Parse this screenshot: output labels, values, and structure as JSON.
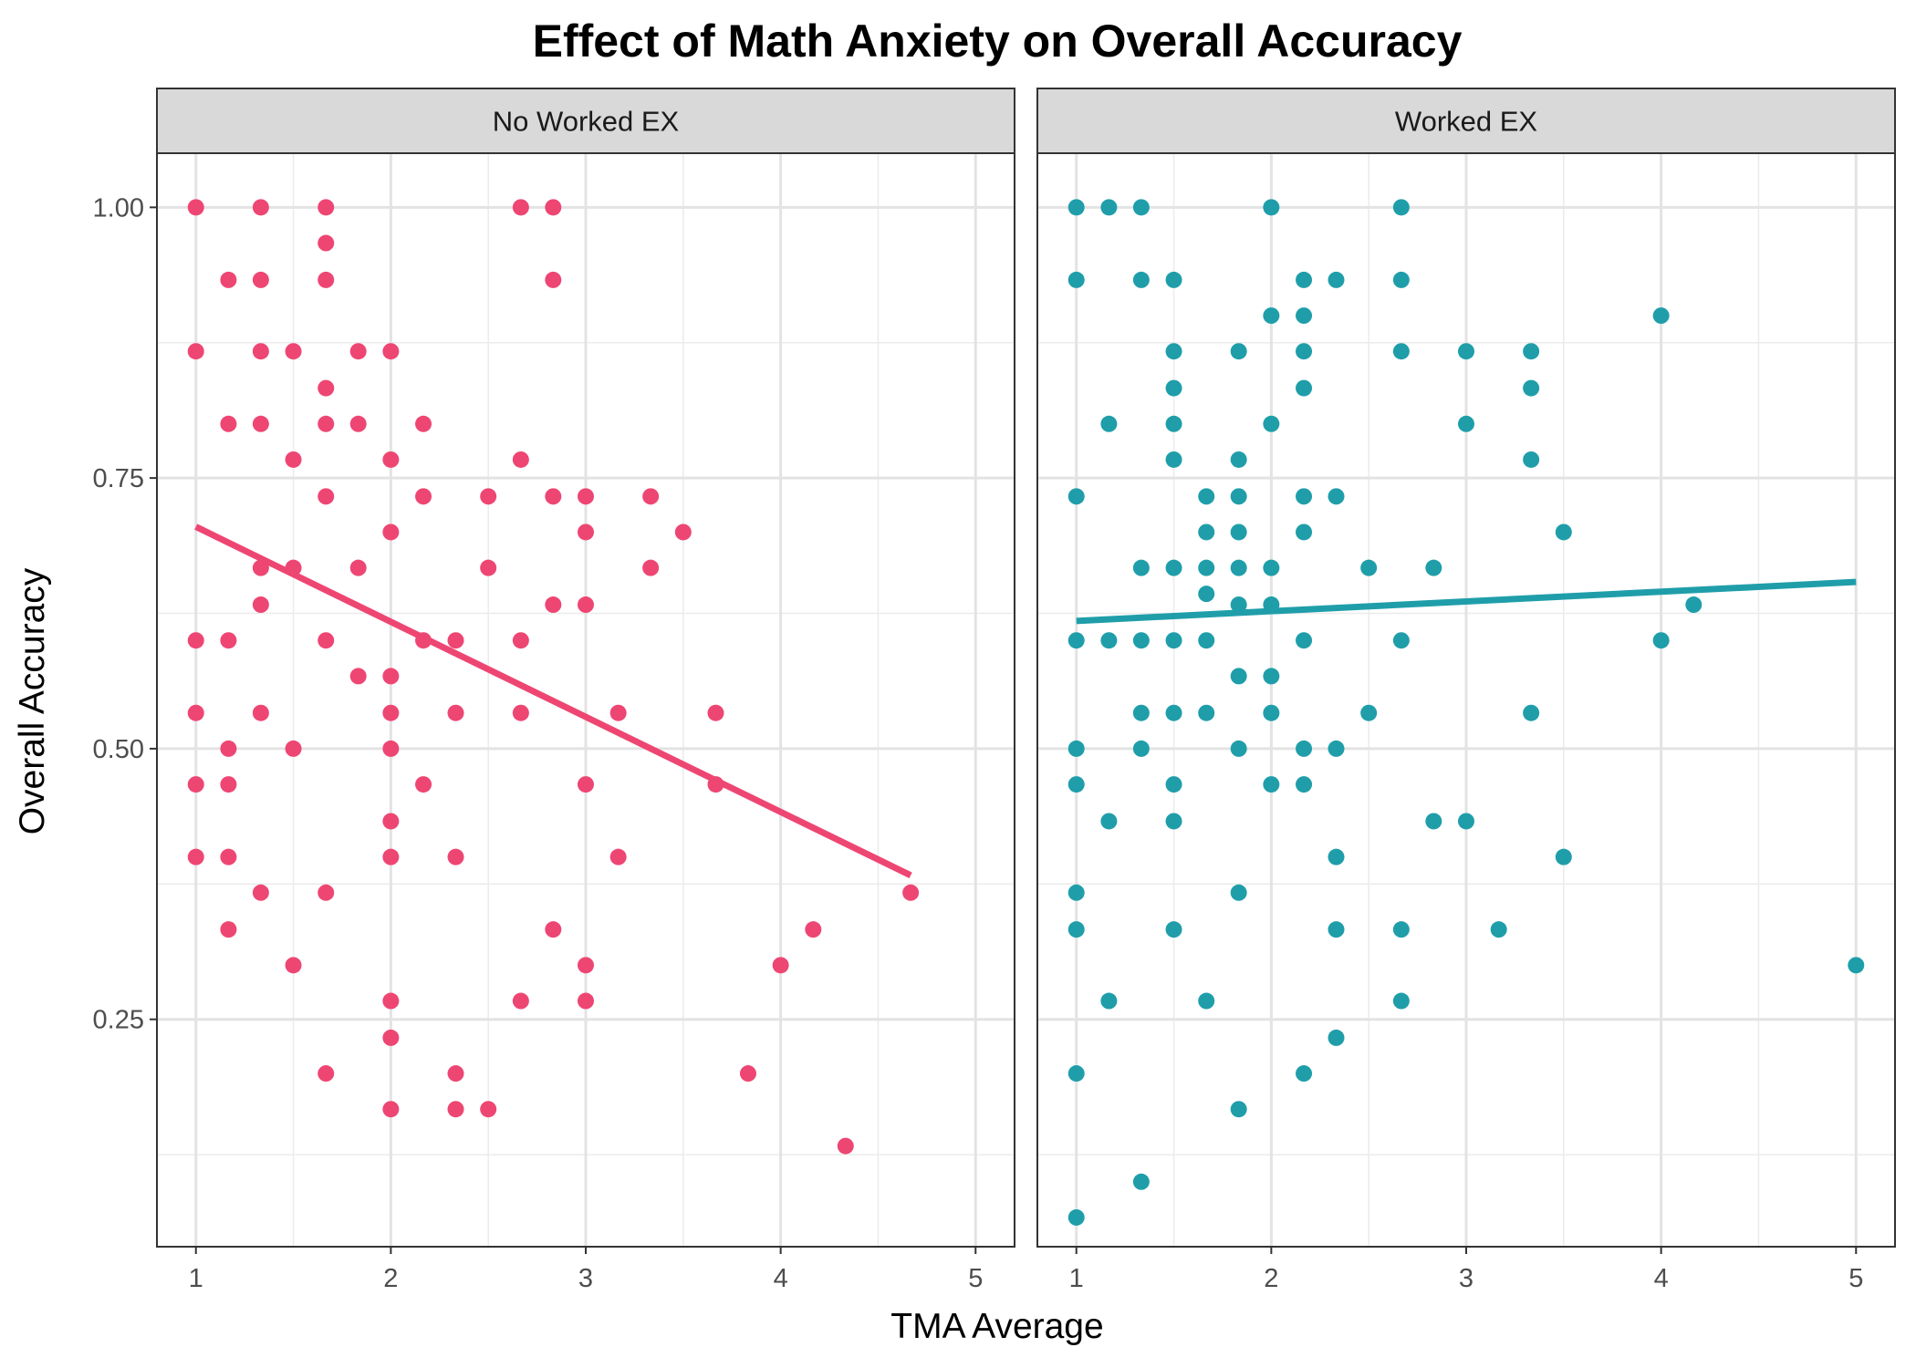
{
  "chart_data": {
    "type": "scatter",
    "title": "Effect of Math Anxiety on Overall Accuracy",
    "xlabel": "TMA Average",
    "ylabel": "Overall Accuracy",
    "xlim": [
      0.8,
      5.2
    ],
    "ylim": [
      0.04,
      1.05
    ],
    "x_ticks": [
      1,
      2,
      3,
      4,
      5
    ],
    "x_tick_labels": [
      "1",
      "2",
      "3",
      "4",
      "5"
    ],
    "y_ticks": [
      0.25,
      0.5,
      0.75,
      1.0
    ],
    "y_tick_labels": [
      "0.25",
      "0.50",
      "0.75",
      "1.00"
    ],
    "grid": true,
    "legend": "none",
    "panels": [
      {
        "name": "No Worked EX",
        "color": "#EE4673",
        "points": [
          [
            1,
            1.0
          ],
          [
            1,
            0.867
          ],
          [
            1,
            0.6
          ],
          [
            1,
            0.533
          ],
          [
            1,
            0.467
          ],
          [
            1,
            0.4
          ],
          [
            1.167,
            0.933
          ],
          [
            1.167,
            0.8
          ],
          [
            1.167,
            0.6
          ],
          [
            1.167,
            0.5
          ],
          [
            1.167,
            0.467
          ],
          [
            1.167,
            0.4
          ],
          [
            1.167,
            0.333
          ],
          [
            1.333,
            1.0
          ],
          [
            1.333,
            0.933
          ],
          [
            1.333,
            0.867
          ],
          [
            1.333,
            0.8
          ],
          [
            1.333,
            0.667
          ],
          [
            1.333,
            0.633
          ],
          [
            1.333,
            0.533
          ],
          [
            1.333,
            0.367
          ],
          [
            1.5,
            0.867
          ],
          [
            1.5,
            0.767
          ],
          [
            1.5,
            0.667
          ],
          [
            1.5,
            0.5
          ],
          [
            1.5,
            0.3
          ],
          [
            1.667,
            1.0
          ],
          [
            1.667,
            0.967
          ],
          [
            1.667,
            0.933
          ],
          [
            1.667,
            0.833
          ],
          [
            1.667,
            0.8
          ],
          [
            1.667,
            0.733
          ],
          [
            1.667,
            0.6
          ],
          [
            1.667,
            0.367
          ],
          [
            1.667,
            0.2
          ],
          [
            1.833,
            0.867
          ],
          [
            1.833,
            0.8
          ],
          [
            1.833,
            0.667
          ],
          [
            1.833,
            0.567
          ],
          [
            2,
            0.867
          ],
          [
            2,
            0.767
          ],
          [
            2,
            0.7
          ],
          [
            2,
            0.567
          ],
          [
            2,
            0.533
          ],
          [
            2,
            0.5
          ],
          [
            2,
            0.433
          ],
          [
            2,
            0.4
          ],
          [
            2,
            0.267
          ],
          [
            2,
            0.233
          ],
          [
            2,
            0.167
          ],
          [
            2.167,
            0.8
          ],
          [
            2.167,
            0.733
          ],
          [
            2.167,
            0.6
          ],
          [
            2.167,
            0.467
          ],
          [
            2.333,
            0.6
          ],
          [
            2.333,
            0.533
          ],
          [
            2.333,
            0.4
          ],
          [
            2.333,
            0.2
          ],
          [
            2.333,
            0.167
          ],
          [
            2.5,
            0.733
          ],
          [
            2.5,
            0.667
          ],
          [
            2.5,
            0.167
          ],
          [
            2.667,
            1.0
          ],
          [
            2.667,
            0.767
          ],
          [
            2.667,
            0.6
          ],
          [
            2.667,
            0.533
          ],
          [
            2.667,
            0.267
          ],
          [
            2.833,
            1.0
          ],
          [
            2.833,
            0.933
          ],
          [
            2.833,
            0.733
          ],
          [
            2.833,
            0.633
          ],
          [
            2.833,
            0.333
          ],
          [
            3,
            0.733
          ],
          [
            3,
            0.7
          ],
          [
            3,
            0.633
          ],
          [
            3,
            0.467
          ],
          [
            3,
            0.3
          ],
          [
            3,
            0.267
          ],
          [
            3.167,
            0.533
          ],
          [
            3.167,
            0.4
          ],
          [
            3.333,
            0.733
          ],
          [
            3.333,
            0.667
          ],
          [
            3.5,
            0.7
          ],
          [
            3.667,
            0.533
          ],
          [
            3.667,
            0.467
          ],
          [
            3.833,
            0.2
          ],
          [
            4,
            0.3
          ],
          [
            4.167,
            0.333
          ],
          [
            4.333,
            0.133
          ],
          [
            4.667,
            0.367
          ]
        ],
        "trend": {
          "x": [
            1,
            4.667
          ],
          "y": [
            0.705,
            0.383
          ]
        }
      },
      {
        "name": "Worked EX",
        "color": "#1F9EAA",
        "points": [
          [
            1,
            1.0
          ],
          [
            1,
            0.933
          ],
          [
            1,
            0.733
          ],
          [
            1,
            0.6
          ],
          [
            1,
            0.5
          ],
          [
            1,
            0.467
          ],
          [
            1,
            0.367
          ],
          [
            1,
            0.333
          ],
          [
            1,
            0.2
          ],
          [
            1,
            0.067
          ],
          [
            1.167,
            1.0
          ],
          [
            1.167,
            0.8
          ],
          [
            1.167,
            0.6
          ],
          [
            1.167,
            0.433
          ],
          [
            1.167,
            0.267
          ],
          [
            1.333,
            1.0
          ],
          [
            1.333,
            0.933
          ],
          [
            1.333,
            0.667
          ],
          [
            1.333,
            0.6
          ],
          [
            1.333,
            0.533
          ],
          [
            1.333,
            0.5
          ],
          [
            1.333,
            0.1
          ],
          [
            1.5,
            0.933
          ],
          [
            1.5,
            0.867
          ],
          [
            1.5,
            0.833
          ],
          [
            1.5,
            0.8
          ],
          [
            1.5,
            0.767
          ],
          [
            1.5,
            0.667
          ],
          [
            1.5,
            0.6
          ],
          [
            1.5,
            0.533
          ],
          [
            1.5,
            0.467
          ],
          [
            1.5,
            0.433
          ],
          [
            1.5,
            0.333
          ],
          [
            1.667,
            0.733
          ],
          [
            1.667,
            0.7
          ],
          [
            1.667,
            0.667
          ],
          [
            1.667,
            0.643
          ],
          [
            1.667,
            0.6
          ],
          [
            1.667,
            0.533
          ],
          [
            1.667,
            0.267
          ],
          [
            1.833,
            0.867
          ],
          [
            1.833,
            0.767
          ],
          [
            1.833,
            0.733
          ],
          [
            1.833,
            0.7
          ],
          [
            1.833,
            0.667
          ],
          [
            1.833,
            0.633
          ],
          [
            1.833,
            0.567
          ],
          [
            1.833,
            0.5
          ],
          [
            1.833,
            0.367
          ],
          [
            1.833,
            0.167
          ],
          [
            2,
            1.0
          ],
          [
            2,
            0.9
          ],
          [
            2,
            0.8
          ],
          [
            2,
            0.667
          ],
          [
            2,
            0.633
          ],
          [
            2,
            0.567
          ],
          [
            2,
            0.533
          ],
          [
            2,
            0.467
          ],
          [
            2.167,
            0.933
          ],
          [
            2.167,
            0.9
          ],
          [
            2.167,
            0.867
          ],
          [
            2.167,
            0.833
          ],
          [
            2.167,
            0.733
          ],
          [
            2.167,
            0.7
          ],
          [
            2.167,
            0.6
          ],
          [
            2.167,
            0.5
          ],
          [
            2.167,
            0.467
          ],
          [
            2.167,
            0.2
          ],
          [
            2.333,
            0.933
          ],
          [
            2.333,
            0.733
          ],
          [
            2.333,
            0.5
          ],
          [
            2.333,
            0.4
          ],
          [
            2.333,
            0.333
          ],
          [
            2.333,
            0.233
          ],
          [
            2.5,
            0.667
          ],
          [
            2.5,
            0.533
          ],
          [
            2.667,
            1.0
          ],
          [
            2.667,
            0.933
          ],
          [
            2.667,
            0.867
          ],
          [
            2.667,
            0.6
          ],
          [
            2.667,
            0.333
          ],
          [
            2.667,
            0.267
          ],
          [
            2.833,
            0.667
          ],
          [
            2.833,
            0.433
          ],
          [
            3,
            0.867
          ],
          [
            3,
            0.8
          ],
          [
            3,
            0.433
          ],
          [
            3.167,
            0.333
          ],
          [
            3.333,
            0.867
          ],
          [
            3.333,
            0.833
          ],
          [
            3.333,
            0.767
          ],
          [
            3.333,
            0.533
          ],
          [
            3.5,
            0.7
          ],
          [
            3.5,
            0.4
          ],
          [
            4,
            0.9
          ],
          [
            4,
            0.6
          ],
          [
            4.167,
            0.633
          ],
          [
            5,
            0.3
          ]
        ],
        "trend": {
          "x": [
            1,
            5
          ],
          "y": [
            0.618,
            0.654
          ]
        }
      }
    ]
  }
}
